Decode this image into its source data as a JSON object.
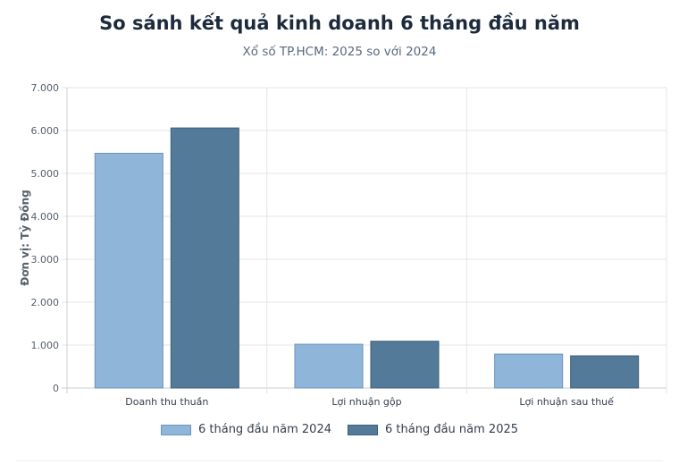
{
  "header": {
    "title": "So sánh kết quả kinh doanh 6 tháng đầu năm",
    "subtitle": "Xổ số TP.HCM: 2025 so với 2024"
  },
  "chart_data": {
    "type": "bar",
    "ylabel": "Đơn vị: Tỷ Đồng",
    "xlabel": "",
    "ylim": [
      0,
      7000
    ],
    "yticks": [
      0,
      1000,
      2000,
      3000,
      4000,
      5000,
      6000,
      7000
    ],
    "ytick_labels": [
      "0",
      "1.000",
      "2.000",
      "3.000",
      "4.000",
      "5.000",
      "6.000",
      "7.000"
    ],
    "categories": [
      "Doanh thu thuần",
      "Lợi nhuận gộp",
      "Lợi nhuận sau thuế"
    ],
    "series": [
      {
        "name": "6 tháng đầu năm 2024",
        "values": [
          5470,
          1020,
          790
        ],
        "color": "#8fb5d9",
        "border": "#6b93bc"
      },
      {
        "name": "6 tháng đầu năm 2025",
        "values": [
          6060,
          1090,
          750
        ],
        "color": "#547a99",
        "border": "#3d5f7c"
      }
    ],
    "grid": true,
    "legend": "bottom"
  }
}
